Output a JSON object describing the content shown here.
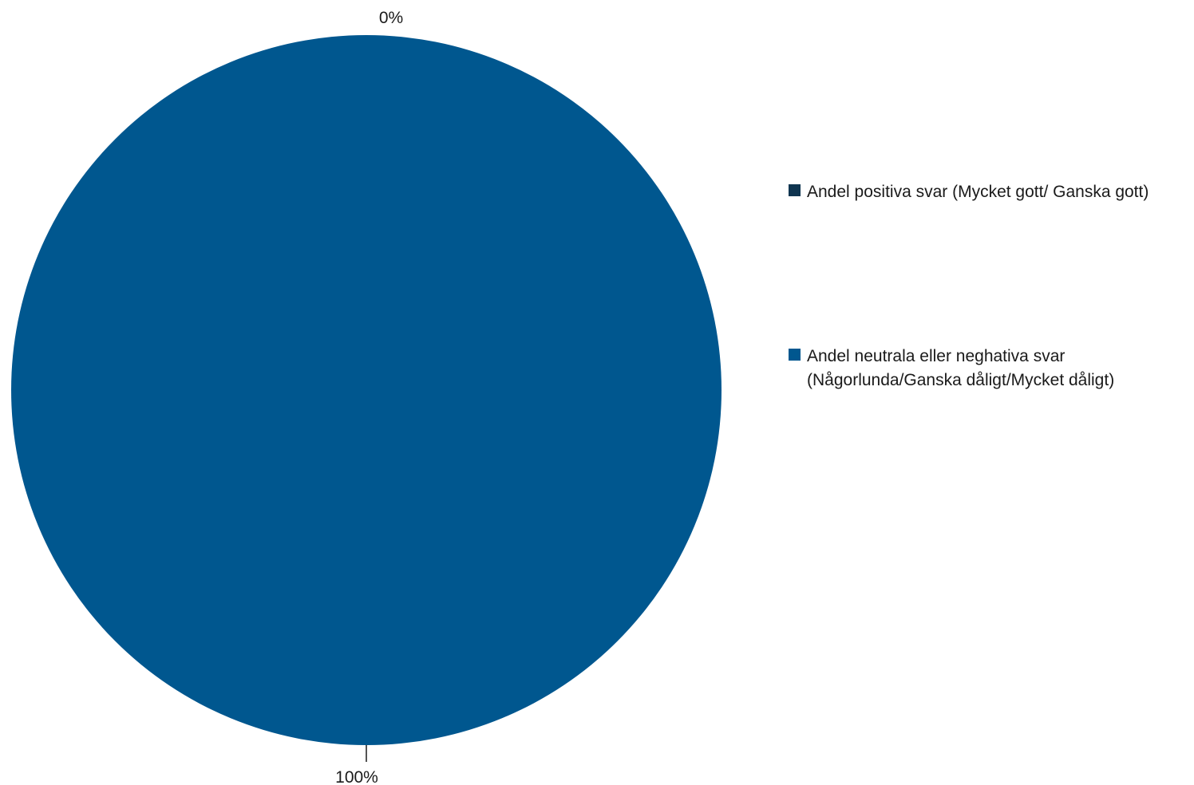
{
  "chart_data": {
    "type": "pie",
    "categories": [
      "Andel positiva svar (Mycket gott/ Ganska gott)",
      "Andel neutrala eller neghativa svar (Någorlunda/Ganska dåligt/Mycket dåligt)"
    ],
    "values": [
      0,
      100
    ],
    "data_labels": [
      "0%",
      "100%"
    ],
    "colors": [
      "#0f3550",
      "#00578f"
    ],
    "legend_position": "right"
  }
}
